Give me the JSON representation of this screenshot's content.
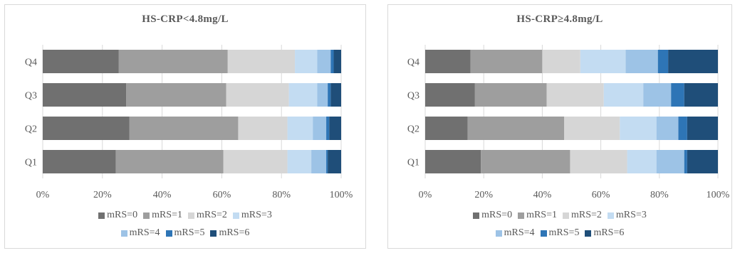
{
  "chart_data": [
    {
      "type": "bar",
      "orientation": "horizontal",
      "stacked": "percent",
      "title": "HS-CRP<4.8mg/L",
      "categories": [
        "Q1",
        "Q2",
        "Q3",
        "Q4"
      ],
      "xlim": [
        0,
        100
      ],
      "x_ticks": [
        "0%",
        "20%",
        "40%",
        "60%",
        "80%",
        "100%"
      ],
      "grid": true,
      "legend": "bottom",
      "series": [
        {
          "name": "mRS=0",
          "values": [
            24.5,
            29.0,
            28.0,
            25.5
          ]
        },
        {
          "name": "mRS=1",
          "values": [
            36.0,
            36.5,
            33.5,
            36.5
          ]
        },
        {
          "name": "mRS=2",
          "values": [
            21.5,
            16.5,
            21.0,
            22.5
          ]
        },
        {
          "name": "mRS=3",
          "values": [
            8.0,
            8.5,
            9.5,
            7.5
          ]
        },
        {
          "name": "mRS=4",
          "values": [
            5.0,
            4.5,
            3.5,
            4.5
          ]
        },
        {
          "name": "mRS=5",
          "values": [
            0.5,
            1.0,
            1.0,
            1.0
          ]
        },
        {
          "name": "mRS=6",
          "values": [
            4.5,
            4.0,
            3.5,
            2.5
          ]
        }
      ]
    },
    {
      "type": "bar",
      "orientation": "horizontal",
      "stacked": "percent",
      "title": "HS-CRP≥4.8mg/L",
      "categories": [
        "Q1",
        "Q2",
        "Q3",
        "Q4"
      ],
      "xlim": [
        0,
        100
      ],
      "x_ticks": [
        "0%",
        "20%",
        "40%",
        "60%",
        "80%",
        "100%"
      ],
      "grid": true,
      "legend": "bottom",
      "series": [
        {
          "name": "mRS=0",
          "values": [
            19.0,
            14.5,
            17.0,
            15.5
          ]
        },
        {
          "name": "mRS=1",
          "values": [
            30.5,
            33.0,
            24.5,
            24.5
          ]
        },
        {
          "name": "mRS=2",
          "values": [
            19.5,
            19.0,
            19.5,
            13.0
          ]
        },
        {
          "name": "mRS=3",
          "values": [
            10.0,
            12.5,
            13.5,
            15.5
          ]
        },
        {
          "name": "mRS=4",
          "values": [
            9.5,
            7.5,
            9.5,
            11.0
          ]
        },
        {
          "name": "mRS=5",
          "values": [
            1.0,
            3.0,
            4.5,
            3.5
          ]
        },
        {
          "name": "mRS=6",
          "values": [
            10.5,
            10.5,
            11.5,
            17.0
          ]
        }
      ]
    }
  ],
  "colors": {
    "mRS=0": "#707070",
    "mRS=1": "#9e9e9e",
    "mRS=2": "#d6d6d6",
    "mRS=3": "#c3dcf2",
    "mRS=4": "#9dc3e6",
    "mRS=5": "#2e75b6",
    "mRS=6": "#1f4e79",
    "grid": "#d9d9d9",
    "text": "#595959"
  }
}
